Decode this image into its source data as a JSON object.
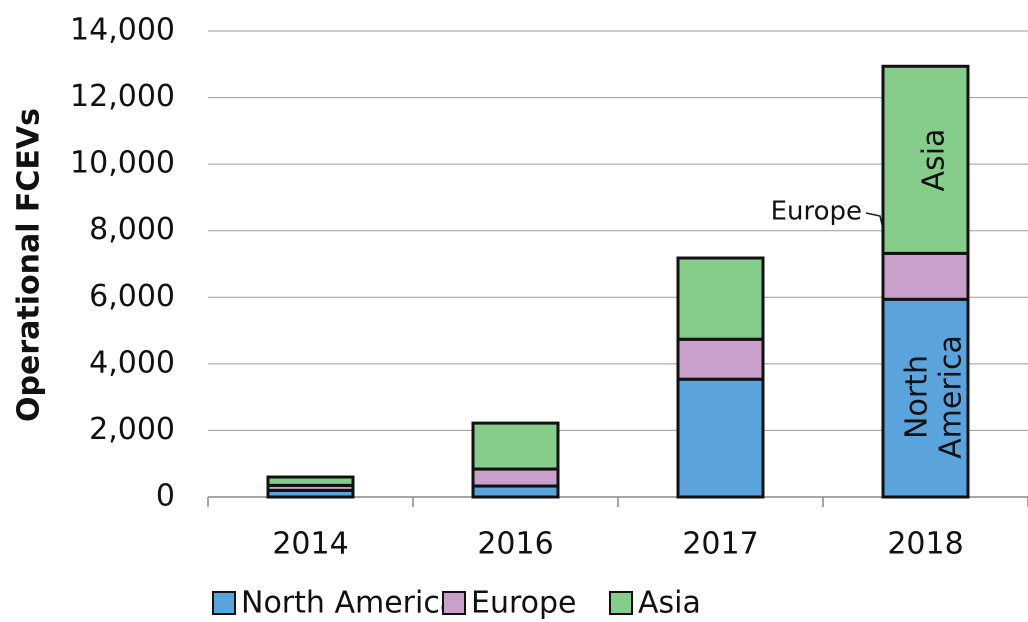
{
  "chart_data": {
    "type": "stacked_bar",
    "y_label": "Operational FCEVs",
    "categories": [
      "2014",
      "2016",
      "2017",
      "2018"
    ],
    "series": [
      {
        "name": "North America",
        "color": "#5ba3dc",
        "values": [
          200,
          330,
          3540,
          5940
        ]
      },
      {
        "name": "Europe",
        "color": "#c9a0cc",
        "values": [
          150,
          510,
          1200,
          1380
        ]
      },
      {
        "name": "Asia",
        "color": "#86cc8a",
        "values": [
          250,
          1380,
          2440,
          5620
        ]
      }
    ],
    "ylim": [
      0,
      14000
    ],
    "yticks": [
      0,
      {
        "value": 2000,
        "label": "2,000"
      },
      {
        "value": 4000,
        "label": "4,000"
      },
      {
        "value": 6000,
        "label": "6,000"
      },
      {
        "value": 8000,
        "label": "8,000"
      },
      {
        "value": 10000,
        "label": "10,000"
      },
      {
        "value": 12000,
        "label": "12,000"
      },
      {
        "value": 14000,
        "label": "14,000"
      }
    ],
    "grid": true,
    "legend": "bottom",
    "annotations": [
      {
        "text": "Asia"
      },
      {
        "text": "Europe"
      },
      {
        "lines": [
          "North",
          "America"
        ]
      }
    ]
  }
}
